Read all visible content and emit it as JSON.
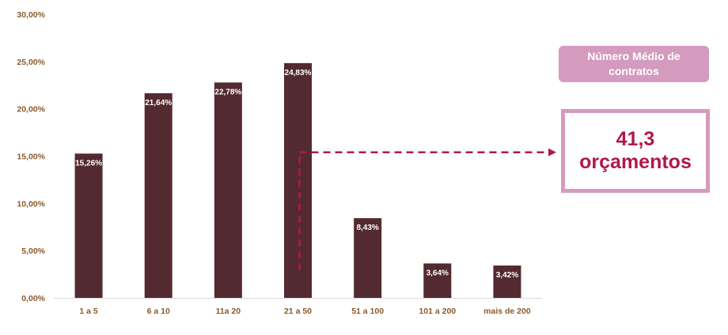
{
  "chart_data": {
    "type": "bar",
    "categories": [
      "1 a 5",
      "6 a 10",
      "11a 20",
      "21 a 50",
      "51 a 100",
      "101 a 200",
      "mais de 200"
    ],
    "values": [
      15.26,
      21.64,
      22.78,
      24.83,
      8.43,
      3.64,
      3.42
    ],
    "value_labels": [
      "15,26%",
      "21,64%",
      "22,78%",
      "24,83%",
      "8,43%",
      "3,64%",
      "3,42%"
    ],
    "y_ticks": [
      "0,00%",
      "5,00%",
      "10,00%",
      "15,00%",
      "20,00%",
      "25,00%",
      "30,00%"
    ],
    "ylim": [
      0,
      30
    ],
    "grid": false,
    "bar_color": "#532A30",
    "tick_color": "#8B5A2B"
  },
  "annotation": {
    "title_line1": "Número Médio de",
    "title_line2": "contratos",
    "value_line1": "41,3",
    "value_line2": "orçamentos",
    "arrow_from_category": "21 a 50",
    "arrow_level": 15.4,
    "box_color": "#D49BBE",
    "accent_color": "#B0174E"
  }
}
